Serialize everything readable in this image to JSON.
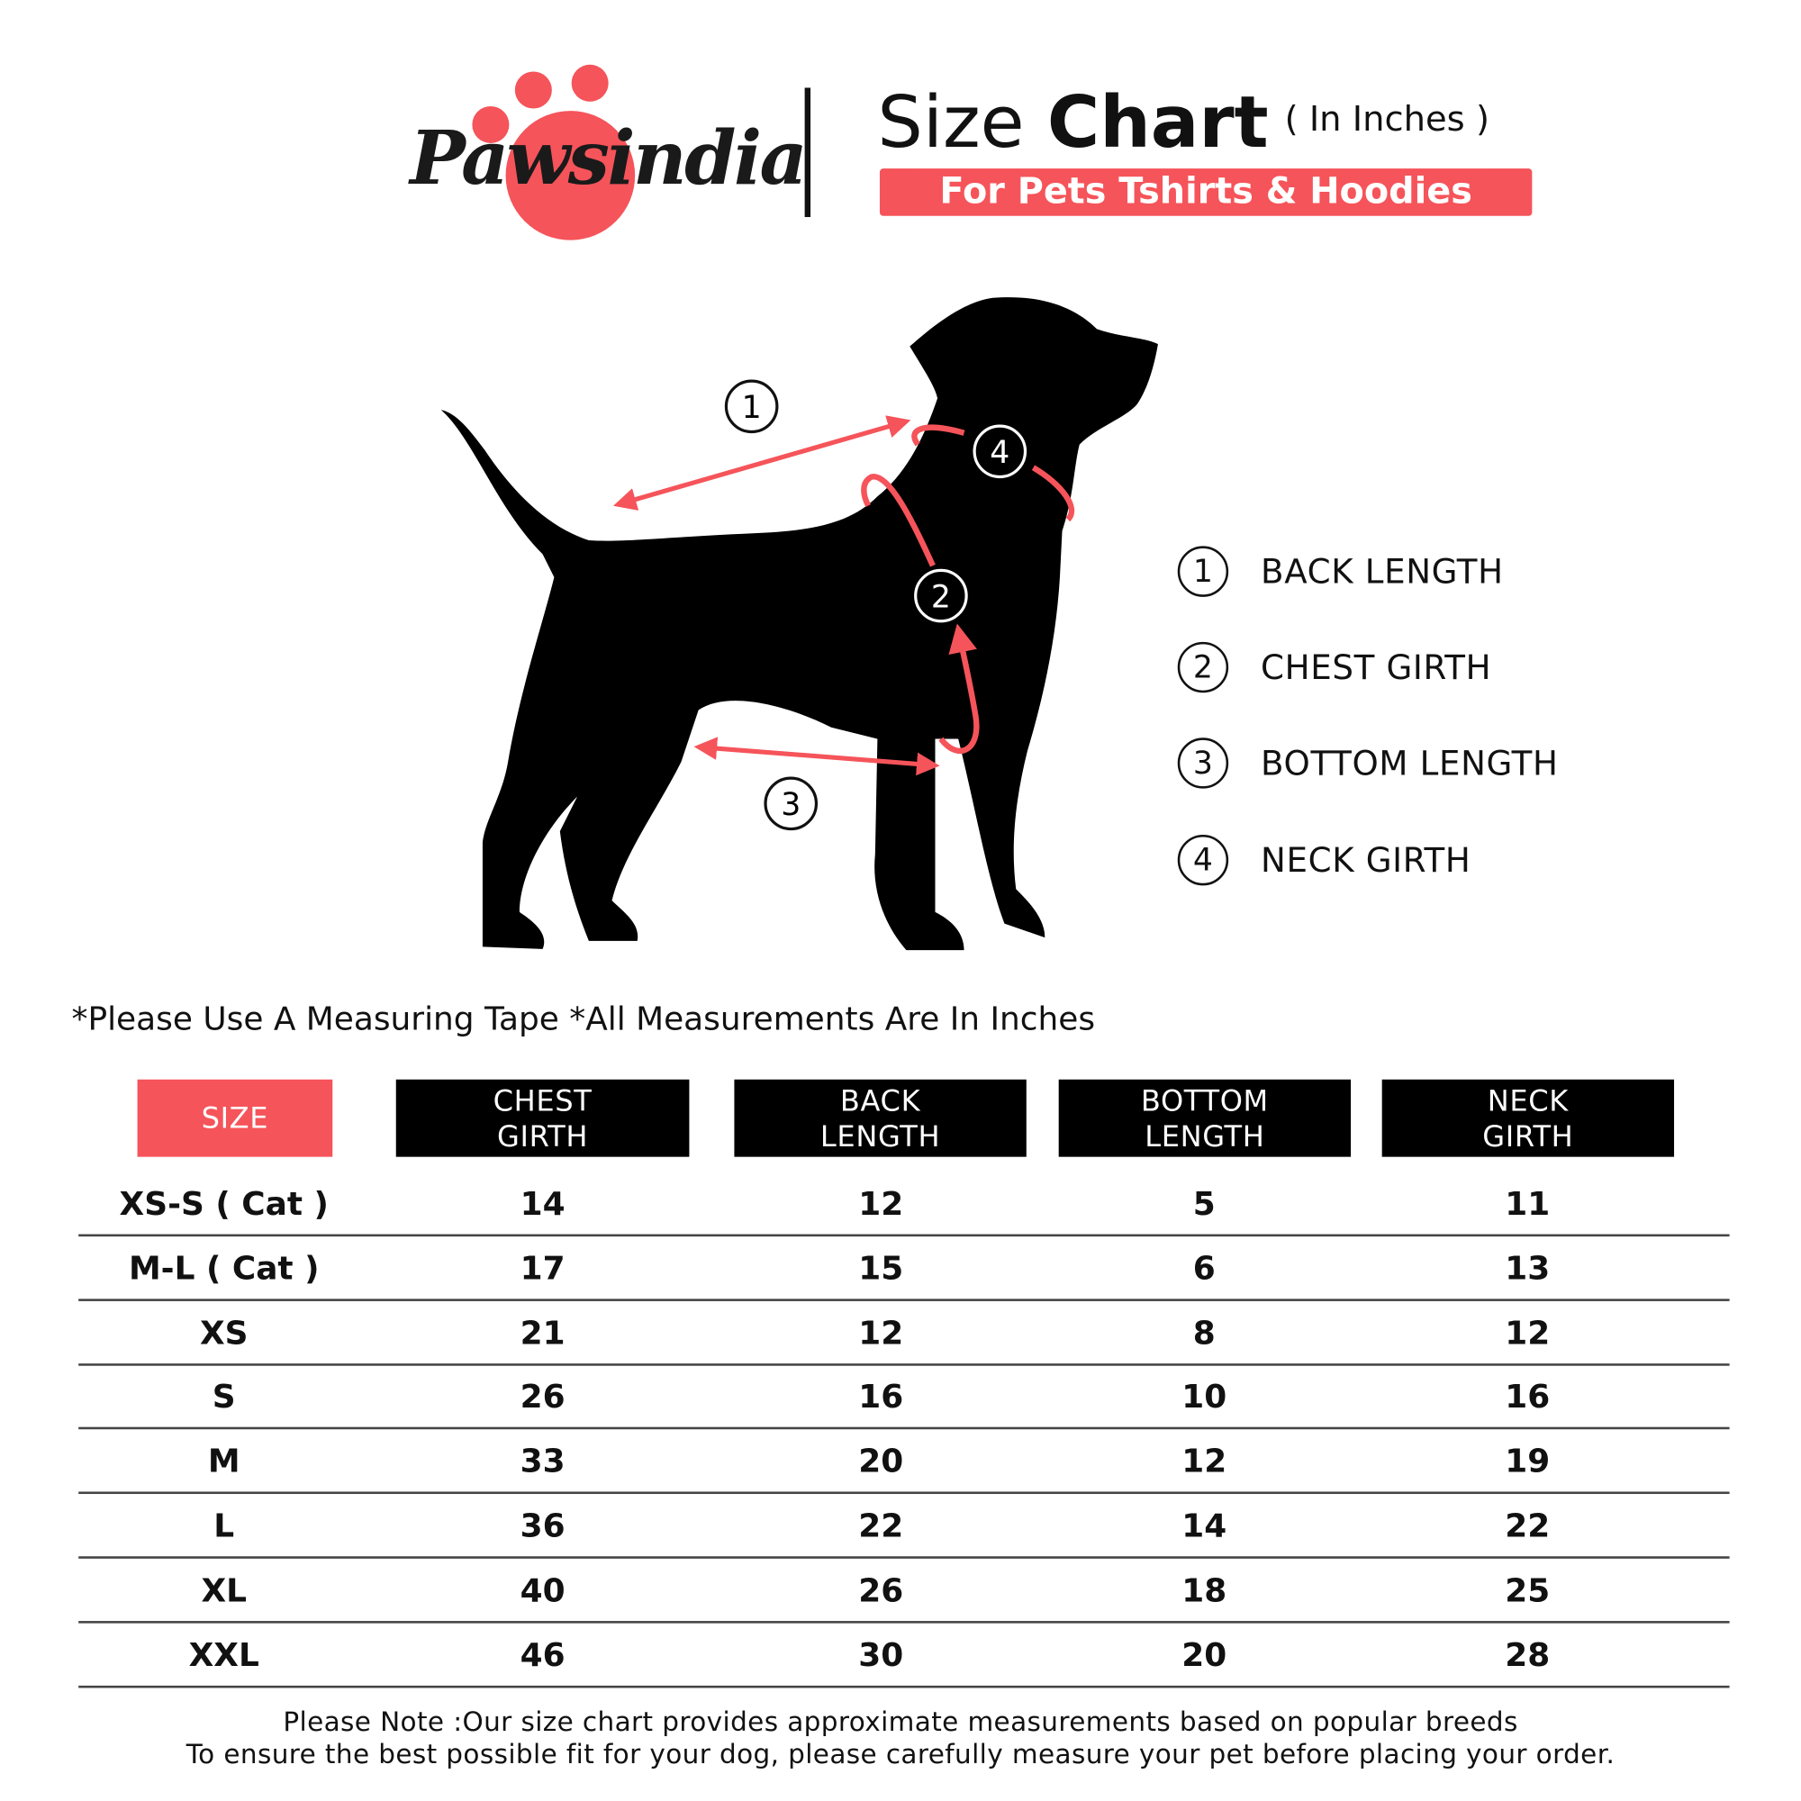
{
  "brand": {
    "name": "Pawsindia",
    "accent": "#f5545a"
  },
  "header": {
    "title_light": "Size",
    "title_bold": "Chart",
    "unit": "( In Inches )",
    "subtitle": "For Pets Tshirts & Hoodies"
  },
  "diagram": {
    "markers": [
      "1",
      "2",
      "3",
      "4"
    ]
  },
  "legend": [
    {
      "num": "1",
      "label": "BACK LENGTH"
    },
    {
      "num": "2",
      "label": "CHEST GIRTH"
    },
    {
      "num": "3",
      "label": "BOTTOM LENGTH"
    },
    {
      "num": "4",
      "label": "NECK GIRTH"
    }
  ],
  "note": "*Please Use A Measuring Tape  *All Measurements Are In Inches",
  "table": {
    "headers": [
      {
        "l1": "SIZE",
        "l2": ""
      },
      {
        "l1": "CHEST",
        "l2": "GIRTH"
      },
      {
        "l1": "BACK",
        "l2": "LENGTH"
      },
      {
        "l1": "BOTTOM",
        "l2": "LENGTH"
      },
      {
        "l1": "NECK",
        "l2": "GIRTH"
      }
    ],
    "rows": [
      [
        "XS-S ( Cat )",
        "14",
        "12",
        "5",
        "11"
      ],
      [
        "M-L ( Cat )",
        "17",
        "15",
        "6",
        "13"
      ],
      [
        "XS",
        "21",
        "12",
        "8",
        "12"
      ],
      [
        "S",
        "26",
        "16",
        "10",
        "16"
      ],
      [
        "M",
        "33",
        "20",
        "12",
        "19"
      ],
      [
        "L",
        "36",
        "22",
        "14",
        "22"
      ],
      [
        "XL",
        "40",
        "26",
        "18",
        "25"
      ],
      [
        "XXL",
        "46",
        "30",
        "20",
        "28"
      ]
    ]
  },
  "footer": {
    "line1": "Please Note :Our size chart provides approximate measurements based on popular breeds",
    "line2": "To ensure the best possible fit for your dog, please carefully measure your pet before placing your order."
  }
}
